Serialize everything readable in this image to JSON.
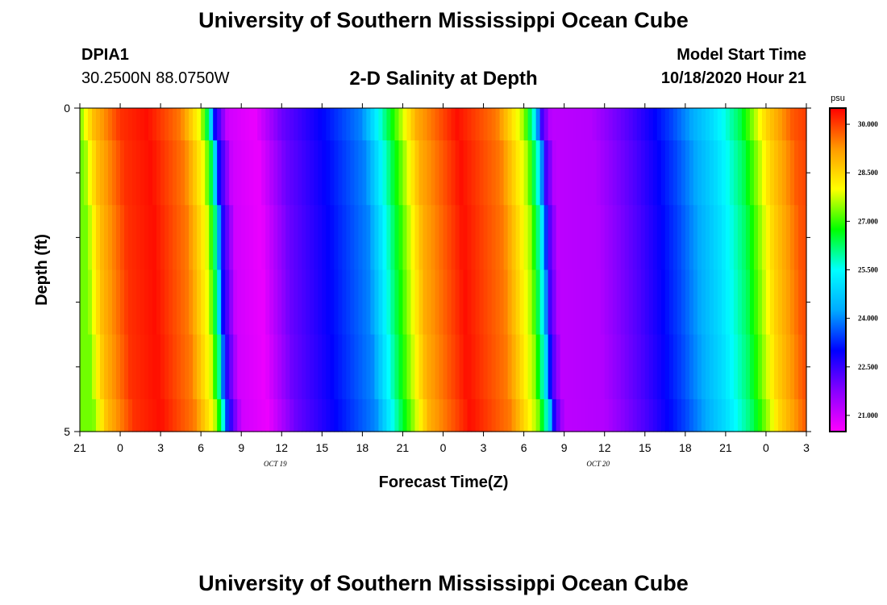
{
  "header": {
    "title": "University of Southern Mississippi Ocean Cube",
    "station_id": "DPIA1",
    "coordinates": "30.2500N 88.0750W",
    "model_start_label": "Model Start Time",
    "model_start_value": "10/18/2020 Hour 21"
  },
  "footer": {
    "title": "University of Southern Mississippi Ocean Cube"
  },
  "chart_data": {
    "type": "heatmap",
    "title": "2-D Salinity at Depth",
    "xlabel": "Forecast Time(Z)",
    "ylabel": "Depth (ft)",
    "x_tick_labels": [
      "21",
      "0",
      "3",
      "6",
      "9",
      "12",
      "15",
      "18",
      "21",
      "0",
      "3",
      "6",
      "9",
      "12",
      "15",
      "18",
      "21",
      "0",
      "3"
    ],
    "x_range_hours": [
      0,
      54
    ],
    "date_labels": [
      {
        "text": "OCT 19",
        "hour": 15
      },
      {
        "text": "OCT 20",
        "hour": 39
      }
    ],
    "y_tick_labels": [
      {
        "value": 0,
        "label": "0"
      },
      {
        "value": 5,
        "label": "5"
      }
    ],
    "y_minor_ticks": [
      1,
      2,
      3,
      4
    ],
    "ylim": [
      0,
      5
    ],
    "units": "psu",
    "colorbar": {
      "label": "psu",
      "range": [
        20.5,
        30.5
      ],
      "tick_values": [
        21.0,
        22.5,
        24.0,
        25.5,
        27.0,
        28.5,
        30.0
      ],
      "tick_labels": [
        "21.000",
        "22.500",
        "24.000",
        "25.500",
        "27.000",
        "28.500",
        "30.000"
      ],
      "colors": [
        "#ff00ff",
        "#8800ff",
        "#0000ff",
        "#00aaff",
        "#00ffff",
        "#00ff00",
        "#ffff00",
        "#ff9900",
        "#ff0000"
      ]
    },
    "depth_layers_ft": [
      0,
      0.5,
      1.5,
      2.5,
      3.5,
      4.5
    ],
    "layer_shift_hours": [
      0,
      0.3,
      0.5,
      0.6,
      0.75,
      1.0
    ],
    "salinity_profile_surface": [
      {
        "hour": 0,
        "psu": 27.3
      },
      {
        "hour": 1,
        "psu": 28.8
      },
      {
        "hour": 3,
        "psu": 30.1
      },
      {
        "hour": 5,
        "psu": 30.4
      },
      {
        "hour": 7.5,
        "psu": 29.5
      },
      {
        "hour": 9,
        "psu": 27.8
      },
      {
        "hour": 9.6,
        "psu": 26.0
      },
      {
        "hour": 10,
        "psu": 23.0
      },
      {
        "hour": 11,
        "psu": 21.0
      },
      {
        "hour": 13,
        "psu": 20.7
      },
      {
        "hour": 15,
        "psu": 22.0
      },
      {
        "hour": 18,
        "psu": 23.0
      },
      {
        "hour": 21,
        "psu": 24.0
      },
      {
        "hour": 23,
        "psu": 26.5
      },
      {
        "hour": 25,
        "psu": 29.0
      },
      {
        "hour": 28,
        "psu": 30.4
      },
      {
        "hour": 31,
        "psu": 29.5
      },
      {
        "hour": 33,
        "psu": 27.5
      },
      {
        "hour": 33.8,
        "psu": 25.5
      },
      {
        "hour": 34.3,
        "psu": 22.5
      },
      {
        "hour": 35,
        "psu": 21.2
      },
      {
        "hour": 38,
        "psu": 21.3
      },
      {
        "hour": 41,
        "psu": 22.3
      },
      {
        "hour": 44,
        "psu": 23.5
      },
      {
        "hour": 47,
        "psu": 25.0
      },
      {
        "hour": 49,
        "psu": 26.3
      },
      {
        "hour": 51,
        "psu": 28.5
      },
      {
        "hour": 53,
        "psu": 29.8
      },
      {
        "hour": 54,
        "psu": 30.0
      }
    ]
  }
}
